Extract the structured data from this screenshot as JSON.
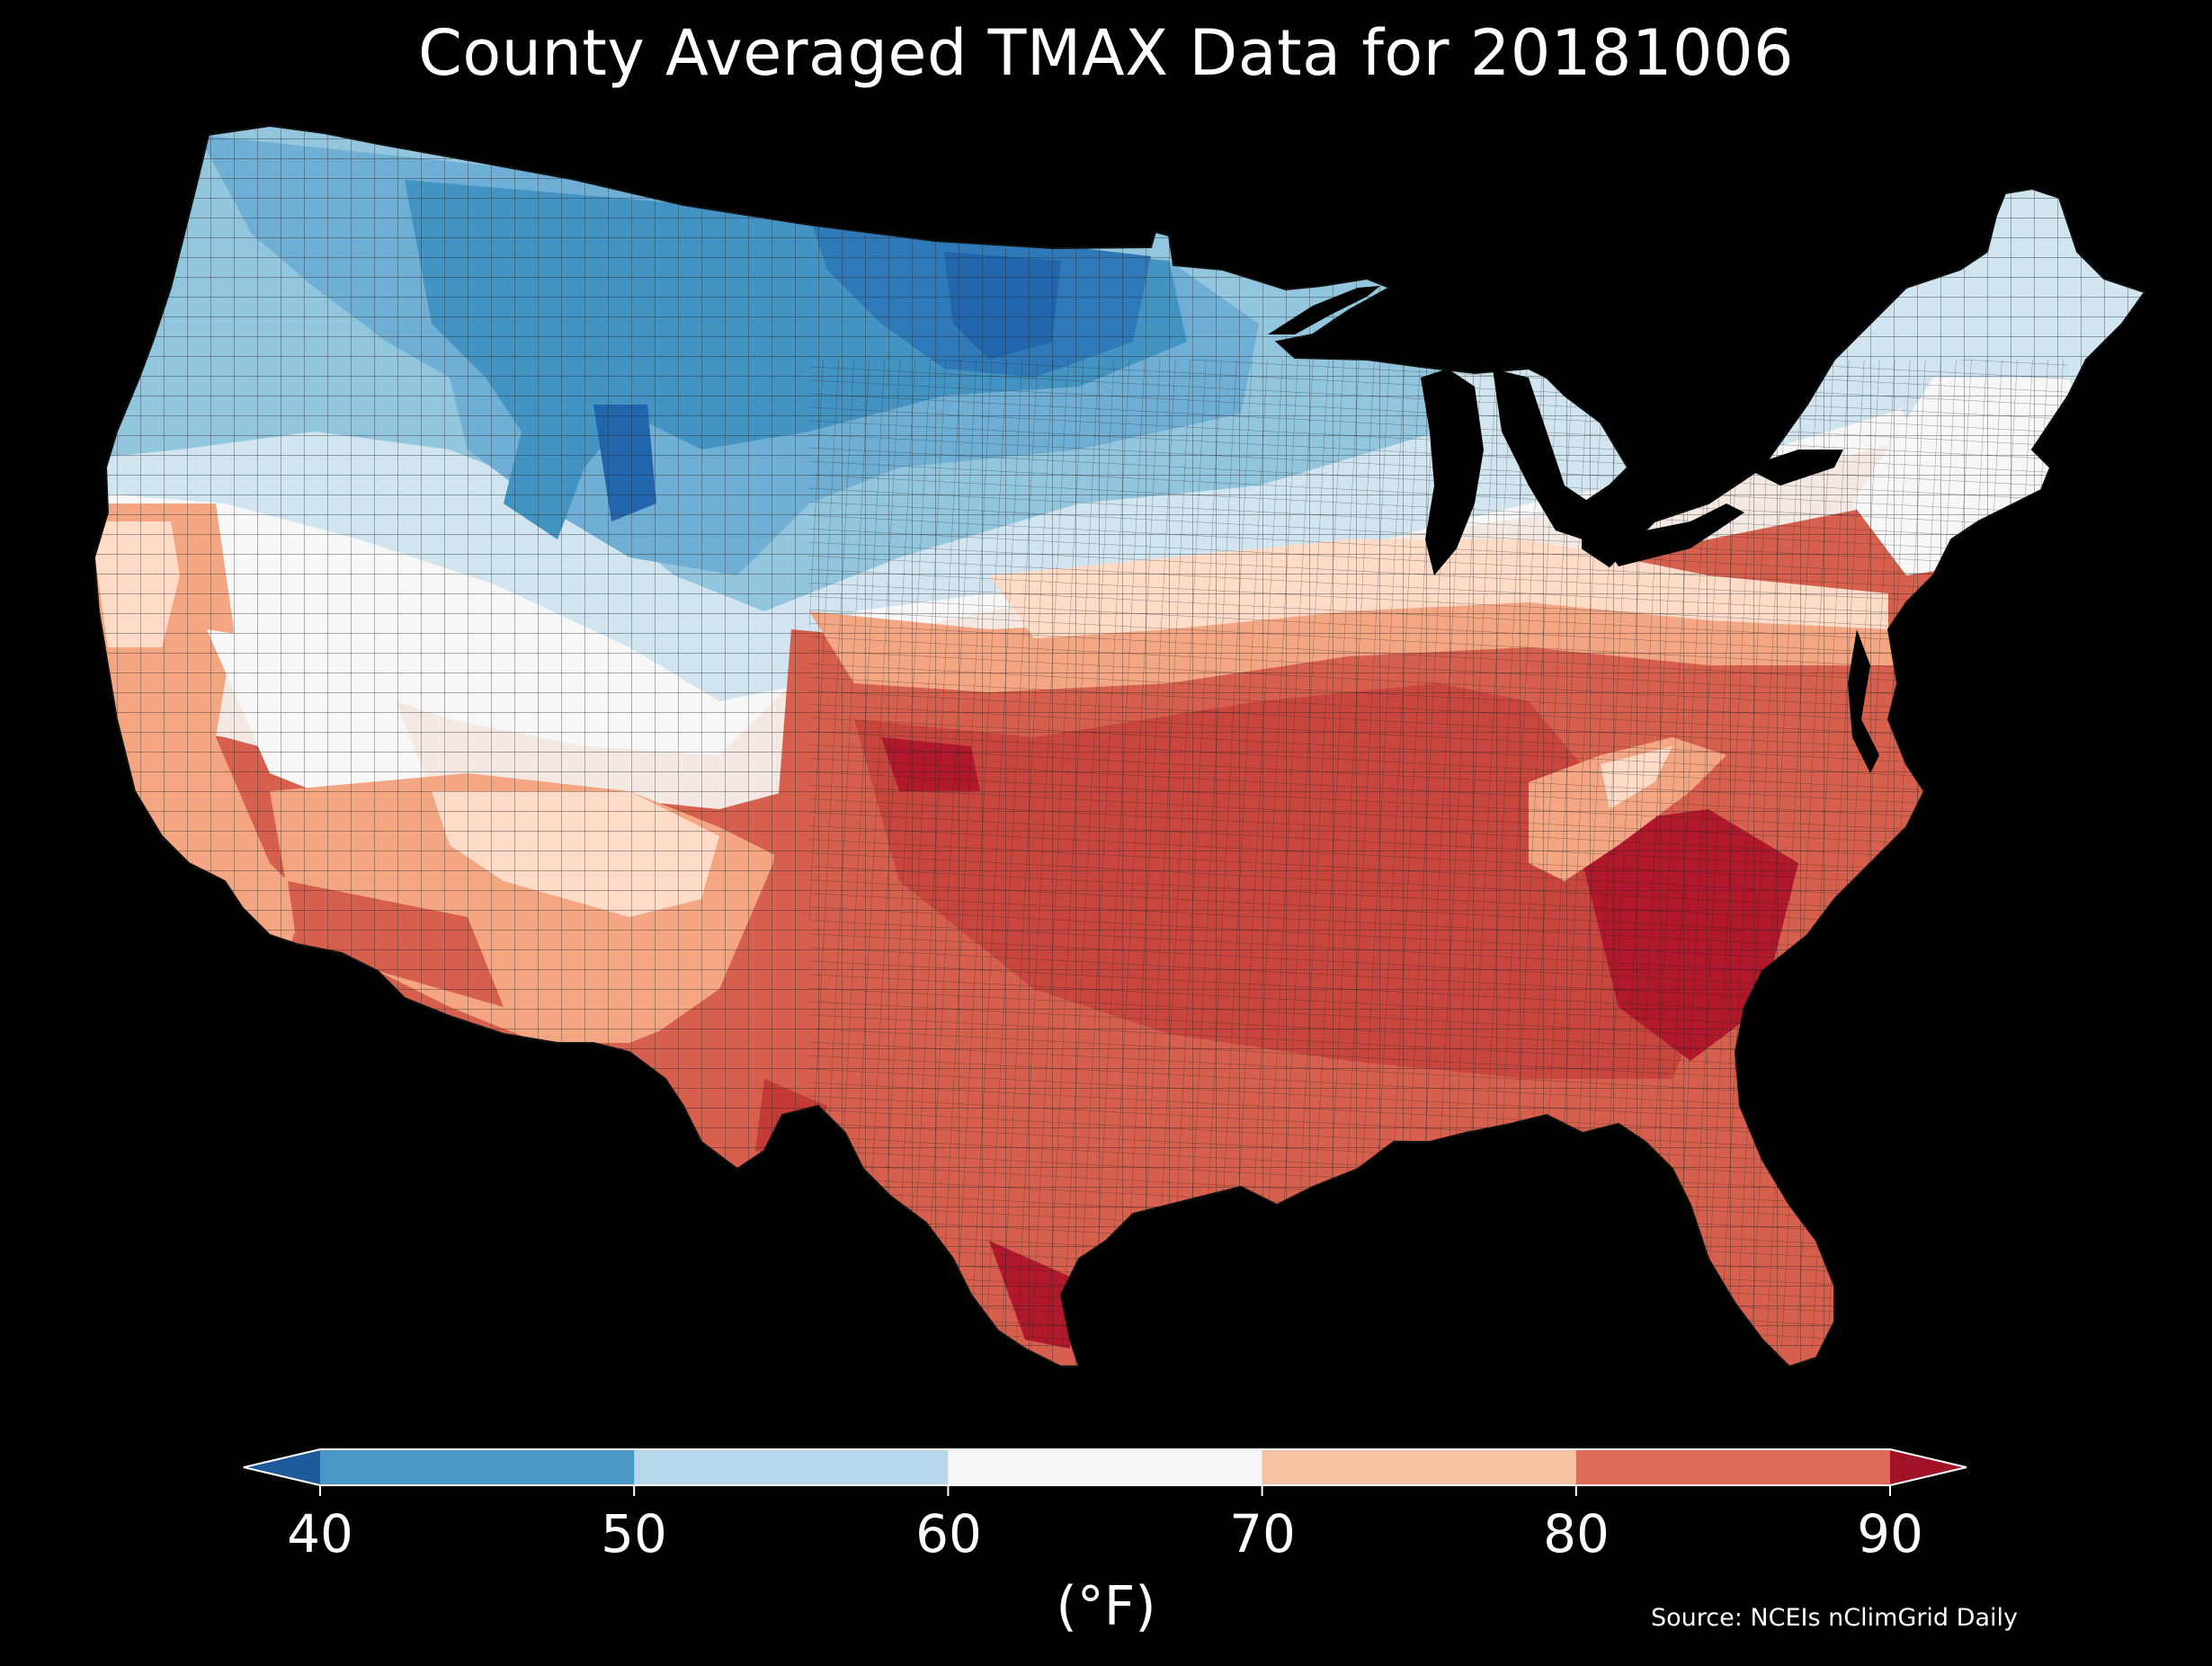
{
  "title": "County Averaged TMAX Data for 20181006",
  "colorbar": {
    "ticks": [
      "40",
      "50",
      "60",
      "70",
      "80",
      "90"
    ],
    "units": "(°F)",
    "bins": [
      {
        "range": "<40",
        "color": "#1f5b9c"
      },
      {
        "range": "40-50",
        "color": "#4a98c8"
      },
      {
        "range": "50-60",
        "color": "#b7d8ea"
      },
      {
        "range": "60-70",
        "color": "#f6f6f6"
      },
      {
        "range": "70-80",
        "color": "#f8c1a4"
      },
      {
        "range": "80-90",
        "color": "#dc6b57"
      },
      {
        "range": ">90",
        "color": "#a11428"
      }
    ]
  },
  "source": "Source: NCEIs nClimGrid Daily",
  "map": {
    "region": "Contiguous United States counties",
    "palette": {
      "deep_blue": "#2166ac",
      "blue": "#4393c3",
      "light_blue": "#92c5de",
      "pale_blue": "#d1e5f0",
      "white": "#f7f7f7",
      "pale_red": "#fddbc7",
      "salmon": "#f4a582",
      "red": "#d6604d",
      "deep_red": "#b2182b"
    }
  }
}
